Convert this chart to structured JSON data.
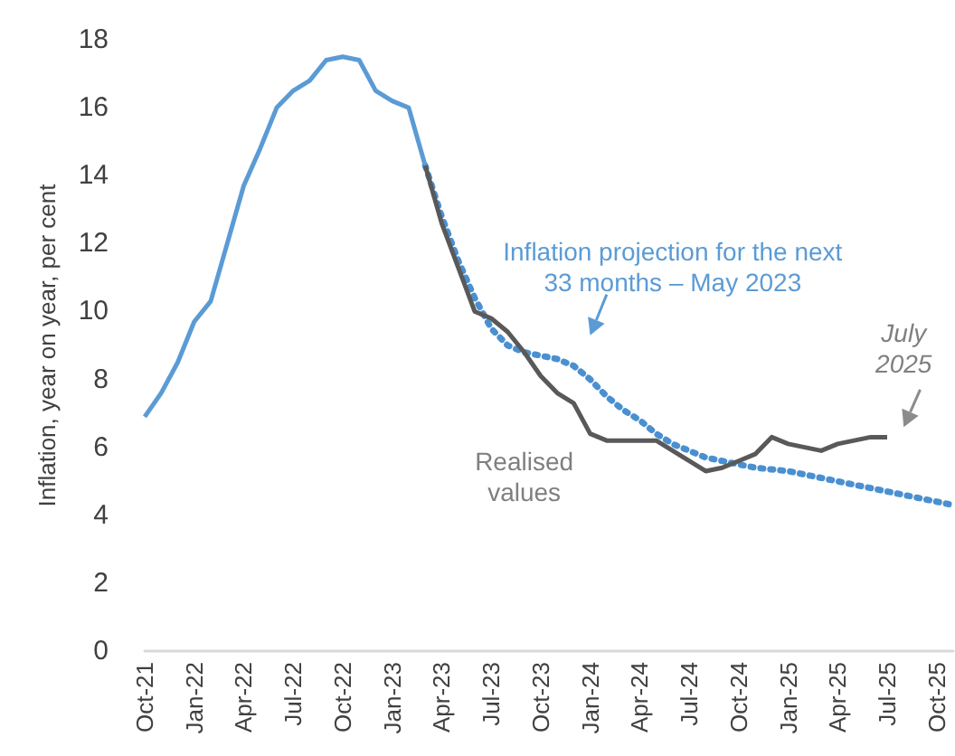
{
  "chart_data": {
    "type": "line",
    "ylabel": "Inflation, year on year, per cent",
    "categories": [
      "Oct-21",
      null,
      null,
      "Jan-22",
      null,
      null,
      "Apr-22",
      null,
      null,
      "Jul-22",
      null,
      null,
      "Oct-22",
      null,
      null,
      "Jan-23",
      null,
      null,
      "Apr-23",
      null,
      null,
      "Jul-23",
      null,
      null,
      "Oct-23",
      null,
      null,
      "Jan-24",
      null,
      null,
      "Apr-24",
      null,
      null,
      "Jul-24",
      null,
      null,
      "Oct-24",
      null,
      null,
      "Jan-25",
      null,
      null,
      "Apr-25",
      null,
      null,
      "Jul-25",
      null,
      null,
      "Oct-25",
      null
    ],
    "series": [
      {
        "color": "#5b9bd5",
        "values": [
          6.9,
          7.6,
          8.5,
          9.7,
          10.3,
          12.0,
          13.7,
          14.8,
          16.0,
          16.5,
          16.8,
          17.4,
          17.5,
          17.4,
          16.5,
          16.2,
          16.0,
          14.3,
          null,
          null,
          null,
          null,
          null,
          null,
          null,
          null,
          null,
          null,
          null,
          null,
          null,
          null,
          null,
          null,
          null,
          null,
          null,
          null,
          null,
          null,
          null,
          null,
          null,
          null,
          null,
          null,
          null,
          null,
          null,
          null
        ]
      },
      {
        "color": "#595959",
        "values": [
          null,
          null,
          null,
          null,
          null,
          null,
          null,
          null,
          null,
          null,
          null,
          null,
          null,
          null,
          null,
          null,
          null,
          14.3,
          12.6,
          11.3,
          10.0,
          9.8,
          9.4,
          8.8,
          8.1,
          7.6,
          7.3,
          6.4,
          6.2,
          6.2,
          6.2,
          6.2,
          5.9,
          5.6,
          5.3,
          5.4,
          5.6,
          5.8,
          6.3,
          6.1,
          6.0,
          5.9,
          6.1,
          6.2,
          6.3,
          6.3,
          null,
          null,
          null,
          null
        ]
      },
      {
        "color": "#4a90d0",
        "line_style": "dotted",
        "values": [
          null,
          null,
          null,
          null,
          null,
          null,
          null,
          null,
          null,
          null,
          null,
          null,
          null,
          null,
          null,
          null,
          null,
          14.3,
          12.8,
          11.5,
          10.4,
          9.5,
          9.0,
          8.8,
          8.7,
          8.6,
          8.4,
          8.0,
          7.5,
          7.1,
          6.8,
          6.4,
          6.1,
          5.9,
          5.7,
          5.6,
          5.5,
          5.4,
          5.35,
          5.3,
          5.2,
          5.1,
          5.0,
          4.9,
          4.8,
          4.7,
          4.6,
          4.5,
          4.4,
          4.3
        ]
      }
    ],
    "ylim": [
      0,
      18
    ],
    "yticks": [
      0,
      2,
      4,
      6,
      8,
      10,
      12,
      14,
      16,
      18
    ],
    "grid": false,
    "marker": "none",
    "line_style": "solid",
    "annotations": [
      "Inflation projection for the next\n33 months – May 2023",
      "July\n2025",
      "Realised\nvalues"
    ]
  }
}
